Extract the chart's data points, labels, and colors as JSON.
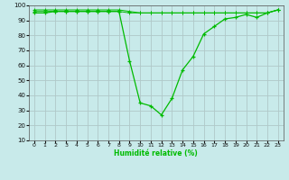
{
  "x": [
    0,
    1,
    2,
    3,
    4,
    5,
    6,
    7,
    8,
    9,
    10,
    11,
    12,
    13,
    14,
    15,
    16,
    17,
    18,
    19,
    20,
    21,
    22,
    23
  ],
  "y_main": [
    95,
    95,
    96,
    96,
    96,
    96,
    96,
    96,
    96,
    63,
    35,
    33,
    27,
    38,
    57,
    66,
    81,
    86,
    91,
    92,
    94,
    92,
    95,
    97
  ],
  "y_flat1": [
    96,
    96,
    96,
    96,
    96,
    96,
    96,
    96,
    96,
    95,
    95,
    95,
    95,
    95,
    95,
    95,
    95,
    95,
    95,
    95,
    95,
    95,
    95,
    97
  ],
  "y_flat2": [
    97,
    97,
    97,
    97,
    97,
    97,
    97,
    97,
    97,
    96,
    95,
    95,
    95,
    95,
    95,
    95,
    95,
    95,
    95,
    95,
    95,
    95,
    95,
    97
  ],
  "xlabel": "Humidité relative (%)",
  "ylim": [
    10,
    100
  ],
  "xlim": [
    -0.5,
    23.5
  ],
  "yticks": [
    10,
    20,
    30,
    40,
    50,
    60,
    70,
    80,
    90,
    100
  ],
  "xticks": [
    0,
    1,
    2,
    3,
    4,
    5,
    6,
    7,
    8,
    9,
    10,
    11,
    12,
    13,
    14,
    15,
    16,
    17,
    18,
    19,
    20,
    21,
    22,
    23
  ],
  "line_color": "#00bb00",
  "bg_color": "#c8eaea",
  "grid_color": "#b0c8c8"
}
